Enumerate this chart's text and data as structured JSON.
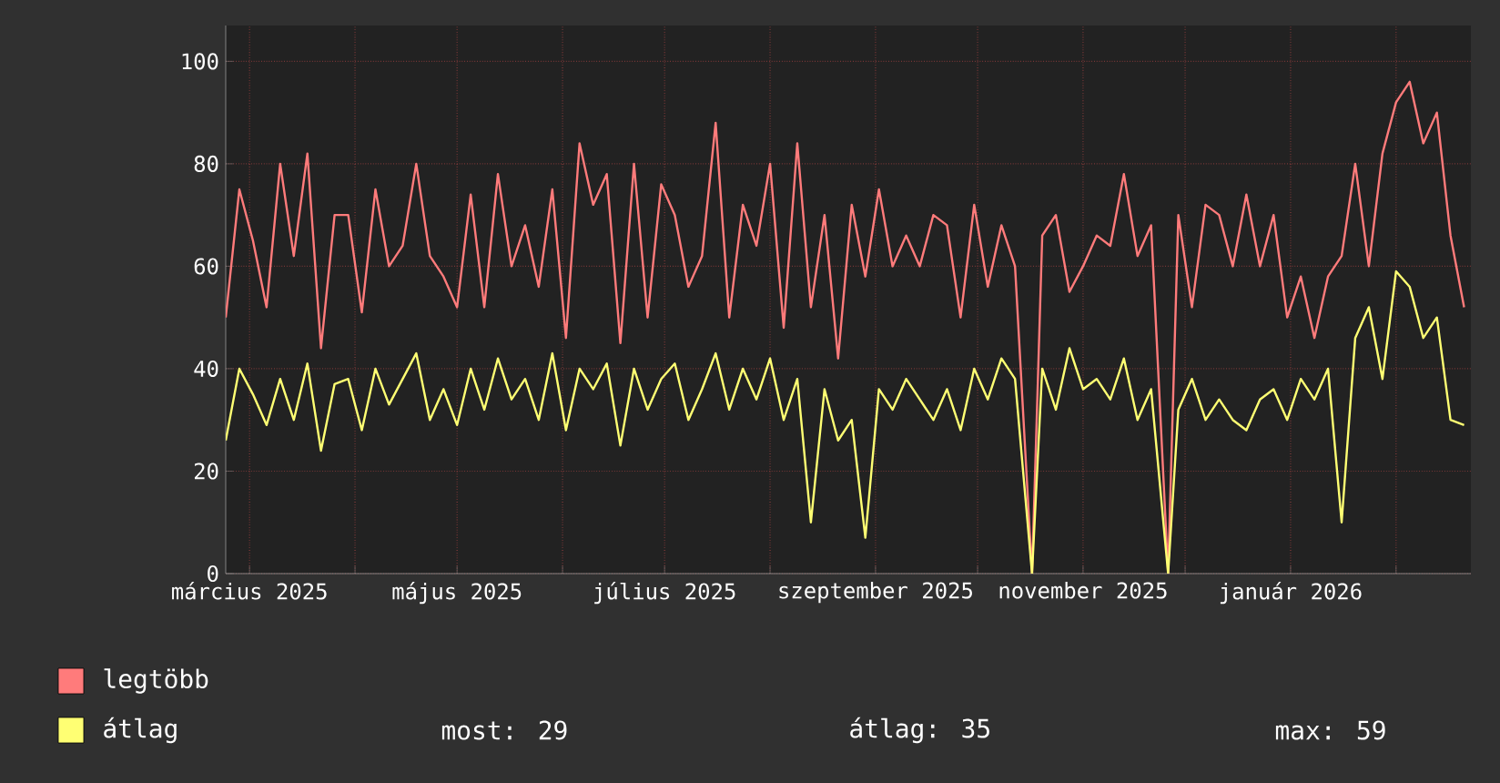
{
  "chart_data": {
    "type": "line",
    "x": [
      "2025-02-22",
      "2025-02-26",
      "2025-03-02",
      "2025-03-06",
      "2025-03-10",
      "2025-03-14",
      "2025-03-18",
      "2025-03-22",
      "2025-03-26",
      "2025-03-30",
      "2025-04-03",
      "2025-04-07",
      "2025-04-11",
      "2025-04-15",
      "2025-04-19",
      "2025-04-23",
      "2025-04-27",
      "2025-05-01",
      "2025-05-05",
      "2025-05-09",
      "2025-05-13",
      "2025-05-17",
      "2025-05-21",
      "2025-05-25",
      "2025-05-29",
      "2025-06-02",
      "2025-06-06",
      "2025-06-10",
      "2025-06-14",
      "2025-06-18",
      "2025-06-22",
      "2025-06-26",
      "2025-06-30",
      "2025-07-04",
      "2025-07-08",
      "2025-07-12",
      "2025-07-16",
      "2025-07-20",
      "2025-07-24",
      "2025-07-28",
      "2025-08-01",
      "2025-08-05",
      "2025-08-09",
      "2025-08-13",
      "2025-08-17",
      "2025-08-21",
      "2025-08-25",
      "2025-08-29",
      "2025-09-02",
      "2025-09-06",
      "2025-09-10",
      "2025-09-14",
      "2025-09-18",
      "2025-09-22",
      "2025-09-26",
      "2025-09-30",
      "2025-10-04",
      "2025-10-08",
      "2025-10-12",
      "2025-10-17",
      "2025-10-20",
      "2025-10-24",
      "2025-10-28",
      "2025-11-01",
      "2025-11-05",
      "2025-11-09",
      "2025-11-13",
      "2025-11-17",
      "2025-11-21",
      "2025-11-26",
      "2025-11-29",
      "2025-12-03",
      "2025-12-07",
      "2025-12-11",
      "2025-12-15",
      "2025-12-19",
      "2025-12-23",
      "2025-12-27",
      "2025-12-31",
      "2026-01-04",
      "2026-01-08",
      "2026-01-12",
      "2026-01-16",
      "2026-01-20",
      "2026-01-24",
      "2026-01-28",
      "2026-02-01",
      "2026-02-05",
      "2026-02-09",
      "2026-02-13",
      "2026-02-17",
      "2026-02-21"
    ],
    "series": [
      {
        "name": "legtöbb",
        "color": "#ff7b7b",
        "values": [
          50,
          75,
          65,
          52,
          80,
          62,
          82,
          44,
          70,
          70,
          51,
          75,
          60,
          64,
          80,
          62,
          58,
          52,
          74,
          52,
          78,
          60,
          68,
          56,
          75,
          46,
          84,
          72,
          78,
          45,
          80,
          50,
          76,
          70,
          56,
          62,
          88,
          50,
          72,
          64,
          80,
          48,
          84,
          52,
          70,
          42,
          72,
          58,
          75,
          60,
          66,
          60,
          70,
          68,
          50,
          72,
          56,
          68,
          60,
          0,
          66,
          70,
          55,
          60,
          66,
          64,
          78,
          62,
          68,
          0,
          70,
          52,
          72,
          70,
          60,
          74,
          60,
          70,
          50,
          58,
          46,
          58,
          62,
          80,
          60,
          82,
          92,
          96,
          84,
          90,
          66,
          52
        ]
      },
      {
        "name": "átlag",
        "color": "#ffff73",
        "values": [
          26,
          40,
          35,
          29,
          38,
          30,
          41,
          24,
          37,
          38,
          28,
          40,
          33,
          38,
          43,
          30,
          36,
          29,
          40,
          32,
          42,
          34,
          38,
          30,
          43,
          28,
          40,
          36,
          41,
          25,
          40,
          32,
          38,
          41,
          30,
          36,
          43,
          32,
          40,
          34,
          42,
          30,
          38,
          10,
          36,
          26,
          30,
          7,
          36,
          32,
          38,
          34,
          30,
          36,
          28,
          40,
          34,
          42,
          38,
          0,
          40,
          32,
          44,
          36,
          38,
          34,
          42,
          30,
          36,
          0,
          32,
          38,
          30,
          34,
          30,
          28,
          34,
          36,
          30,
          38,
          34,
          40,
          10,
          46,
          52,
          38,
          59,
          56,
          46,
          50,
          30,
          29
        ]
      }
    ],
    "xlim": [
      "2025-02-22",
      "2026-02-23"
    ],
    "xticks": [
      {
        "value": "2025-03-01",
        "label": "március 2025"
      },
      {
        "value": "2025-04-01",
        "label": null
      },
      {
        "value": "2025-05-01",
        "label": "május 2025"
      },
      {
        "value": "2025-06-01",
        "label": null
      },
      {
        "value": "2025-07-01",
        "label": "július 2025"
      },
      {
        "value": "2025-08-01",
        "label": null
      },
      {
        "value": "2025-09-01",
        "label": "szeptember 2025"
      },
      {
        "value": "2025-10-01",
        "label": null
      },
      {
        "value": "2025-11-01",
        "label": "november 2025"
      },
      {
        "value": "2025-12-01",
        "label": null
      },
      {
        "value": "2026-01-01",
        "label": "január 2026"
      },
      {
        "value": "2026-02-01",
        "label": null
      }
    ],
    "ylim": [
      0,
      107
    ],
    "yticks": [
      0,
      20,
      40,
      60,
      80,
      100
    ],
    "grid": true,
    "legend": "bottom",
    "annotations": [
      "most: 29",
      "átlag: 35",
      "max: 59"
    ]
  }
}
